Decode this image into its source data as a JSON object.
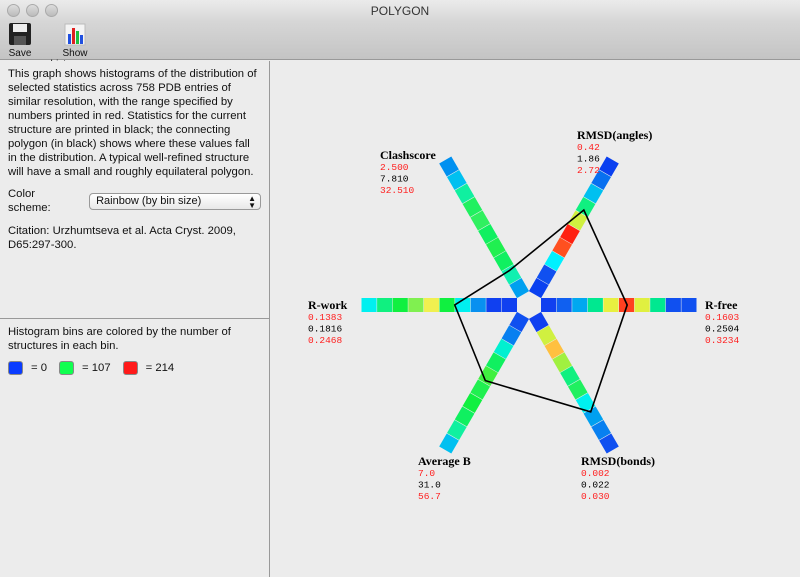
{
  "window": {
    "title": "POLYGON"
  },
  "toolbar": {
    "save_label": "Save",
    "histograms_label": "Show histograms"
  },
  "info": {
    "description": "This graph shows histograms of the distribution of selected statistics across 758 PDB entries of similar resolution, with the range specified by numbers printed in red.  Statistics for the current structure are printed in black; the connecting polygon (in black) shows where these values fall in the distribution. A typical well-refined structure will have a small and roughly equilateral polygon.",
    "color_scheme_label": "Color scheme:",
    "color_scheme_value": "Rainbow (by bin size)",
    "citation": "Citation: Urzhumtseva et al. Acta Cryst. 2009, D65:297-300."
  },
  "legend": {
    "text": "Histogram bins are colored by the number of structures in each bin.",
    "items": [
      {
        "label": "= 0",
        "color": "#0a3cff"
      },
      {
        "label": "= 107",
        "color": "#10ff50"
      },
      {
        "label": "= 214",
        "color": "#ff1a1a"
      }
    ]
  },
  "colors": {
    "range": "#ff2020",
    "current": "#000000",
    "polygon": "#000000"
  },
  "chart_data": {
    "type": "polygon-histogram",
    "axes": [
      {
        "name": "R-free",
        "min": "0.1603",
        "value": "0.2504",
        "max": "0.3234",
        "bins": [
          "#1040f0",
          "#1060f0",
          "#00a8f0",
          "#00e890",
          "#e8f040",
          "#ff4020",
          "#e0f040",
          "#00e890",
          "#1050f0",
          "#1050f0"
        ]
      },
      {
        "name": "RMSD(angles)",
        "min": "0.42",
        "value": "1.86",
        "max": "2.72",
        "bins": [
          "#0a40f0",
          "#1050f0",
          "#00f0ff",
          "#ff5020",
          "#ff2010",
          "#d0f040",
          "#10f080",
          "#00c0f0",
          "#0870f0",
          "#0a40f0"
        ]
      },
      {
        "name": "Clashscore",
        "min": "2.500",
        "value": "7.810",
        "max": "32.510",
        "bins": [
          "#00a0f0",
          "#10f0b0",
          "#10f060",
          "#20f050",
          "#10f060",
          "#30f060",
          "#20f060",
          "#10f0a0",
          "#00c0f0",
          "#0090f0"
        ]
      },
      {
        "name": "R-work",
        "min": "0.1383",
        "value": "0.1816",
        "max": "0.2468",
        "bins": [
          "#1040f0",
          "#1040f0",
          "#0890f0",
          "#00f0f0",
          "#10f040",
          "#f0f050",
          "#80f050",
          "#10f040",
          "#10f080",
          "#00f0f0"
        ]
      },
      {
        "name": "Average B",
        "min": "7.0",
        "value": "31.0",
        "max": "56.7",
        "bins": [
          "#1050f0",
          "#0880f0",
          "#00f0d0",
          "#10f060",
          "#40f040",
          "#20f050",
          "#10f040",
          "#10f060",
          "#10f0a0",
          "#00c0f0"
        ]
      },
      {
        "name": "RMSD(bonds)",
        "min": "0.002",
        "value": "0.022",
        "max": "0.030",
        "bins": [
          "#1040f0",
          "#d0f040",
          "#ffc040",
          "#a0f040",
          "#10f080",
          "#20f060",
          "#00f0f0",
          "#00a0f0",
          "#0880f0",
          "#1050f0"
        ]
      }
    ]
  }
}
